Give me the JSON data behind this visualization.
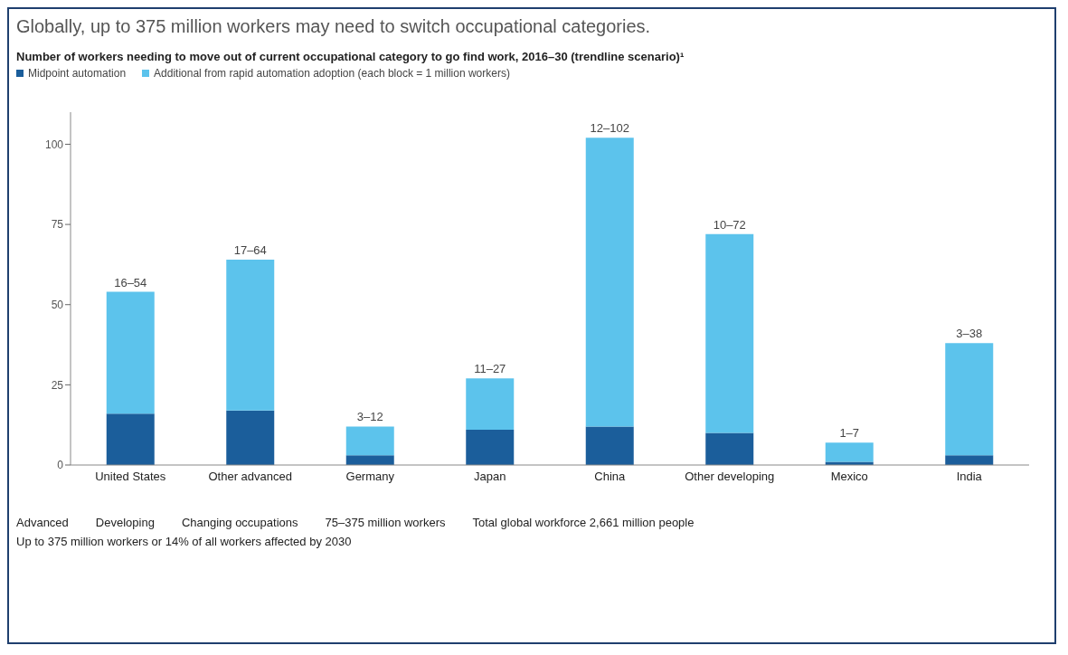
{
  "chart_data": {
    "type": "bar",
    "title": "Globally, up to 375 million workers may need to switch occupational categories.",
    "subtitle": "Number of workers needing to move out of current occupational category to go find work, 2016–30 (trendline scenario)¹",
    "categories": [
      "United States",
      "Other advanced",
      "Germany",
      "Japan",
      "China",
      "Other developing",
      "Mexico",
      "India"
    ],
    "series": [
      {
        "name": "Midpoint automation",
        "color": "#1b5e9b",
        "values": [
          16,
          17,
          3,
          11,
          12,
          10,
          1,
          3
        ]
      },
      {
        "name": "Additional from rapid automation adoption (each block = 1 million workers)",
        "color": "#5cc3ec",
        "values": [
          38,
          47,
          9,
          16,
          90,
          62,
          6,
          35
        ],
        "value_labels": [
          "16–54",
          "17–64",
          "3–12",
          "11–27",
          "12–102",
          "10–72",
          "1–7",
          "3–38"
        ]
      }
    ],
    "stacked": true,
    "ylim": [
      0,
      110
    ],
    "yticks": [
      0,
      25,
      50,
      75,
      100
    ],
    "legend": "top left",
    "annotations": [
      "Advanced",
      "Developing",
      "Changing occupations",
      "75–375 million workers",
      "Total global workforce 2,661 million people",
      "Up to 375 million workers or 14% of all workers affected by 2030"
    ]
  }
}
